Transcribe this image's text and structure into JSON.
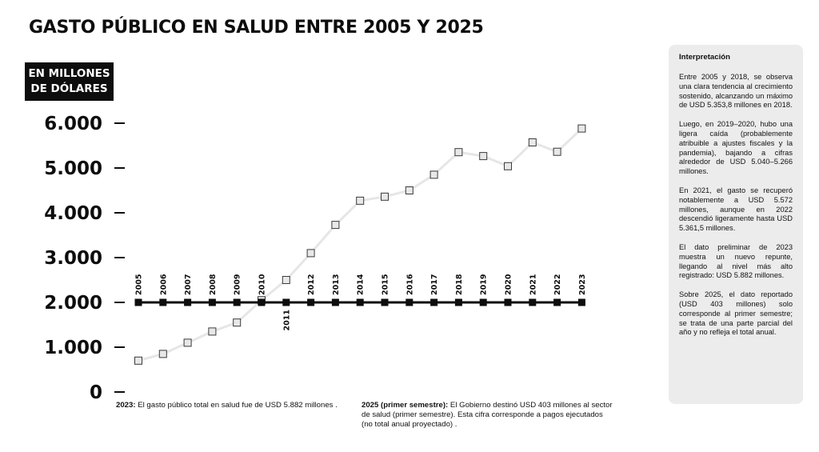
{
  "title": "GASTO PÚBLICO EN SALUD ENTRE 2005 Y 2025",
  "unit_label": {
    "line1": "EN MILLONES",
    "line2": "DE DÓLARES"
  },
  "colors": {
    "trend_line": "#e6e6e6",
    "marker_fill": "#e8e8e8",
    "baseline": "#0d0d0d",
    "panel": "#ececec"
  },
  "chart_data": {
    "type": "line",
    "x": [
      "2005",
      "2006",
      "2007",
      "2008",
      "2009",
      "2010",
      "2011",
      "2012",
      "2013",
      "2014",
      "2015",
      "2016",
      "2017",
      "2018",
      "2019",
      "2020",
      "2021",
      "2022",
      "2023"
    ],
    "series": [
      {
        "values": [
          700,
          850,
          1100,
          1350,
          1550,
          2050,
          2500,
          3100,
          3730,
          4270,
          4360,
          4500,
          4850,
          5354,
          5266,
          5040,
          5572,
          5362,
          5882
        ]
      }
    ],
    "year_timeline_value": 2000,
    "year_labels_below": [
      "2011"
    ],
    "ylim": [
      0,
      6000
    ],
    "yticks": [
      0,
      1000,
      2000,
      3000,
      4000,
      5000,
      6000
    ],
    "ytick_labels": [
      "0",
      "1.000",
      "2.000",
      "3.000",
      "4.000",
      "5.000",
      "6.000"
    ],
    "grid": false,
    "xlabel": "",
    "ylabel": "EN MILLONES DE DÓLARES"
  },
  "notes": {
    "left_bold": "2023:",
    "left_text": " El gasto público total en salud fue de USD 5.882 millones .",
    "right_bold": "2025 (primer semestre):",
    "right_text": " El Gobierno destinó USD 403 millones al sector de salud (primer semestre). Esta cifra corresponde a pagos ejecutados (no total anual proyectado) ."
  },
  "panel": {
    "title": "Interpretación",
    "paragraphs": [
      "Entre 2005 y 2018, se observa una clara tendencia al crecimiento sostenido, alcanzando un máximo de USD 5.353,8 millones en 2018.",
      "Luego, en 2019–2020, hubo una ligera caída (probablemente atribuible a ajustes fiscales y la pandemia), bajando a cifras alrededor de USD 5.040–5.266 millones.",
      "En 2021, el gasto se recuperó notablemente a USD 5.572 millones, aunque en 2022 descendió ligeramente hasta USD 5.361,5 millones.",
      "El dato preliminar de 2023 muestra un nuevo repunte, llegando al nivel más alto registrado: USD 5.882 millones.",
      "Sobre 2025, el dato reportado (USD 403 millones) solo corresponde al primer semestre; se trata de una parte parcial del año y no refleja el total anual."
    ]
  }
}
